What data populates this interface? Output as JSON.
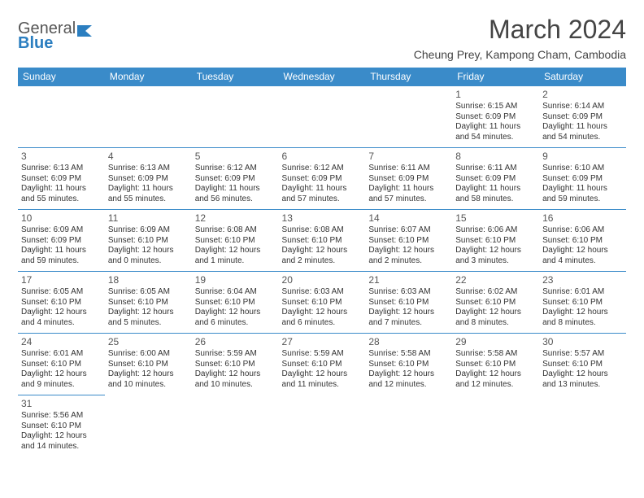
{
  "logo": {
    "text1": "General",
    "text2": "Blue"
  },
  "title": "March 2024",
  "location": "Cheung Prey, Kampong Cham, Cambodia",
  "colors": {
    "header_bg": "#3a8bc9",
    "header_text": "#ffffff",
    "border": "#3a8bc9",
    "logo_gray": "#555555",
    "logo_blue": "#2b7ec0",
    "title_color": "#444444",
    "cell_text": "#333333",
    "page_bg": "#ffffff"
  },
  "days": [
    "Sunday",
    "Monday",
    "Tuesday",
    "Wednesday",
    "Thursday",
    "Friday",
    "Saturday"
  ],
  "weeks": [
    [
      null,
      null,
      null,
      null,
      null,
      {
        "d": "1",
        "r": "Sunrise: 6:15 AM",
        "s": "Sunset: 6:09 PM",
        "l1": "Daylight: 11 hours",
        "l2": "and 54 minutes."
      },
      {
        "d": "2",
        "r": "Sunrise: 6:14 AM",
        "s": "Sunset: 6:09 PM",
        "l1": "Daylight: 11 hours",
        "l2": "and 54 minutes."
      }
    ],
    [
      {
        "d": "3",
        "r": "Sunrise: 6:13 AM",
        "s": "Sunset: 6:09 PM",
        "l1": "Daylight: 11 hours",
        "l2": "and 55 minutes."
      },
      {
        "d": "4",
        "r": "Sunrise: 6:13 AM",
        "s": "Sunset: 6:09 PM",
        "l1": "Daylight: 11 hours",
        "l2": "and 55 minutes."
      },
      {
        "d": "5",
        "r": "Sunrise: 6:12 AM",
        "s": "Sunset: 6:09 PM",
        "l1": "Daylight: 11 hours",
        "l2": "and 56 minutes."
      },
      {
        "d": "6",
        "r": "Sunrise: 6:12 AM",
        "s": "Sunset: 6:09 PM",
        "l1": "Daylight: 11 hours",
        "l2": "and 57 minutes."
      },
      {
        "d": "7",
        "r": "Sunrise: 6:11 AM",
        "s": "Sunset: 6:09 PM",
        "l1": "Daylight: 11 hours",
        "l2": "and 57 minutes."
      },
      {
        "d": "8",
        "r": "Sunrise: 6:11 AM",
        "s": "Sunset: 6:09 PM",
        "l1": "Daylight: 11 hours",
        "l2": "and 58 minutes."
      },
      {
        "d": "9",
        "r": "Sunrise: 6:10 AM",
        "s": "Sunset: 6:09 PM",
        "l1": "Daylight: 11 hours",
        "l2": "and 59 minutes."
      }
    ],
    [
      {
        "d": "10",
        "r": "Sunrise: 6:09 AM",
        "s": "Sunset: 6:09 PM",
        "l1": "Daylight: 11 hours",
        "l2": "and 59 minutes."
      },
      {
        "d": "11",
        "r": "Sunrise: 6:09 AM",
        "s": "Sunset: 6:10 PM",
        "l1": "Daylight: 12 hours",
        "l2": "and 0 minutes."
      },
      {
        "d": "12",
        "r": "Sunrise: 6:08 AM",
        "s": "Sunset: 6:10 PM",
        "l1": "Daylight: 12 hours",
        "l2": "and 1 minute."
      },
      {
        "d": "13",
        "r": "Sunrise: 6:08 AM",
        "s": "Sunset: 6:10 PM",
        "l1": "Daylight: 12 hours",
        "l2": "and 2 minutes."
      },
      {
        "d": "14",
        "r": "Sunrise: 6:07 AM",
        "s": "Sunset: 6:10 PM",
        "l1": "Daylight: 12 hours",
        "l2": "and 2 minutes."
      },
      {
        "d": "15",
        "r": "Sunrise: 6:06 AM",
        "s": "Sunset: 6:10 PM",
        "l1": "Daylight: 12 hours",
        "l2": "and 3 minutes."
      },
      {
        "d": "16",
        "r": "Sunrise: 6:06 AM",
        "s": "Sunset: 6:10 PM",
        "l1": "Daylight: 12 hours",
        "l2": "and 4 minutes."
      }
    ],
    [
      {
        "d": "17",
        "r": "Sunrise: 6:05 AM",
        "s": "Sunset: 6:10 PM",
        "l1": "Daylight: 12 hours",
        "l2": "and 4 minutes."
      },
      {
        "d": "18",
        "r": "Sunrise: 6:05 AM",
        "s": "Sunset: 6:10 PM",
        "l1": "Daylight: 12 hours",
        "l2": "and 5 minutes."
      },
      {
        "d": "19",
        "r": "Sunrise: 6:04 AM",
        "s": "Sunset: 6:10 PM",
        "l1": "Daylight: 12 hours",
        "l2": "and 6 minutes."
      },
      {
        "d": "20",
        "r": "Sunrise: 6:03 AM",
        "s": "Sunset: 6:10 PM",
        "l1": "Daylight: 12 hours",
        "l2": "and 6 minutes."
      },
      {
        "d": "21",
        "r": "Sunrise: 6:03 AM",
        "s": "Sunset: 6:10 PM",
        "l1": "Daylight: 12 hours",
        "l2": "and 7 minutes."
      },
      {
        "d": "22",
        "r": "Sunrise: 6:02 AM",
        "s": "Sunset: 6:10 PM",
        "l1": "Daylight: 12 hours",
        "l2": "and 8 minutes."
      },
      {
        "d": "23",
        "r": "Sunrise: 6:01 AM",
        "s": "Sunset: 6:10 PM",
        "l1": "Daylight: 12 hours",
        "l2": "and 8 minutes."
      }
    ],
    [
      {
        "d": "24",
        "r": "Sunrise: 6:01 AM",
        "s": "Sunset: 6:10 PM",
        "l1": "Daylight: 12 hours",
        "l2": "and 9 minutes."
      },
      {
        "d": "25",
        "r": "Sunrise: 6:00 AM",
        "s": "Sunset: 6:10 PM",
        "l1": "Daylight: 12 hours",
        "l2": "and 10 minutes."
      },
      {
        "d": "26",
        "r": "Sunrise: 5:59 AM",
        "s": "Sunset: 6:10 PM",
        "l1": "Daylight: 12 hours",
        "l2": "and 10 minutes."
      },
      {
        "d": "27",
        "r": "Sunrise: 5:59 AM",
        "s": "Sunset: 6:10 PM",
        "l1": "Daylight: 12 hours",
        "l2": "and 11 minutes."
      },
      {
        "d": "28",
        "r": "Sunrise: 5:58 AM",
        "s": "Sunset: 6:10 PM",
        "l1": "Daylight: 12 hours",
        "l2": "and 12 minutes."
      },
      {
        "d": "29",
        "r": "Sunrise: 5:58 AM",
        "s": "Sunset: 6:10 PM",
        "l1": "Daylight: 12 hours",
        "l2": "and 12 minutes."
      },
      {
        "d": "30",
        "r": "Sunrise: 5:57 AM",
        "s": "Sunset: 6:10 PM",
        "l1": "Daylight: 12 hours",
        "l2": "and 13 minutes."
      }
    ],
    [
      {
        "d": "31",
        "r": "Sunrise: 5:56 AM",
        "s": "Sunset: 6:10 PM",
        "l1": "Daylight: 12 hours",
        "l2": "and 14 minutes."
      },
      null,
      null,
      null,
      null,
      null,
      null
    ]
  ]
}
